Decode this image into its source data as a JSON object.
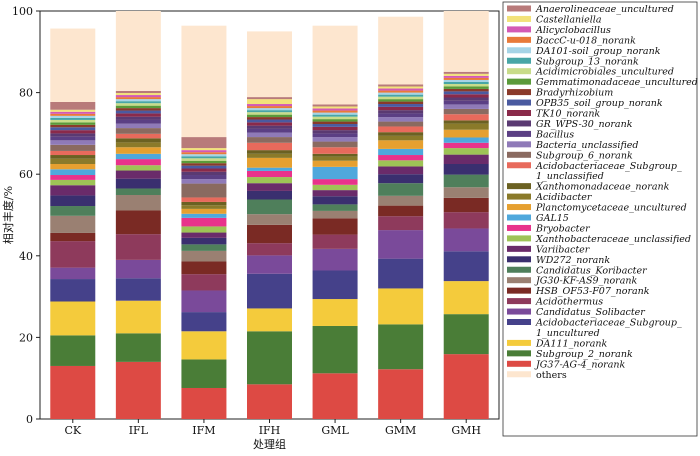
{
  "chart_data": {
    "type": "bar",
    "stacked": true,
    "categories": [
      "CK",
      "IFL",
      "IFM",
      "IFH",
      "GML",
      "GMM",
      "GMH"
    ],
    "xlabel": "处理组",
    "ylabel": "相对丰度/%",
    "ylim": [
      0,
      100
    ],
    "yticks": [
      0,
      20,
      40,
      60,
      80,
      100
    ],
    "legend_position": "right",
    "series": [
      {
        "name": "JG37-AG-4_norank",
        "color": "#dd4a44",
        "values": [
          13,
          14,
          7.6,
          8.5,
          11.2,
          12.2,
          15.9
        ]
      },
      {
        "name": "Subgroup_2_norank",
        "color": "#4a7d37",
        "values": [
          7.5,
          7,
          7,
          13,
          11.6,
          11,
          9.8
        ]
      },
      {
        "name": "DA111_norank",
        "color": "#f4cb3c",
        "values": [
          8.3,
          8,
          6.9,
          5.6,
          6.6,
          8.8,
          8.1
        ]
      },
      {
        "name": "Acidobacteriaceae_Subgroup_1_uncultured",
        "color": "#45418a",
        "values": [
          5.5,
          5.5,
          4.7,
          8.5,
          7,
          7.3,
          7.3
        ]
      },
      {
        "name": "Candidatus_Solibacter",
        "color": "#7a4a9a",
        "values": [
          2.8,
          4.5,
          5.3,
          4.5,
          5.3,
          7,
          5.6
        ]
      },
      {
        "name": "Acidothermus",
        "color": "#8e3a5c",
        "values": [
          6.5,
          6.3,
          4,
          3,
          3.5,
          3.4,
          4
        ]
      },
      {
        "name": "HSB_OF53-F07_norank",
        "color": "#7a2a24",
        "values": [
          2,
          5.8,
          3.1,
          4.5,
          4,
          2.6,
          3.5
        ]
      },
      {
        "name": "JG30-KF-AS9_norank",
        "color": "#9a8072",
        "values": [
          4.2,
          3.8,
          2.6,
          2.6,
          1.8,
          2.4,
          2.6
        ]
      },
      {
        "name": "Candidatus_Koribacter",
        "color": "#4f7f5b",
        "values": [
          2.4,
          1.6,
          1.6,
          3.6,
          1.6,
          3.1,
          3.1
        ]
      },
      {
        "name": "WD272_norank",
        "color": "#3a2f6f",
        "values": [
          2.6,
          2.4,
          1.6,
          2.1,
          2,
          2.2,
          2.6
        ]
      },
      {
        "name": "Variibacter",
        "color": "#6a2b6a",
        "values": [
          2.5,
          2,
          1.3,
          1.9,
          1.5,
          1.9,
          2.3
        ]
      },
      {
        "name": "Xanthobacteraceae_unclassified",
        "color": "#9ec356",
        "values": [
          1.3,
          1.3,
          1.5,
          1.5,
          1.3,
          1.5,
          1.6
        ]
      },
      {
        "name": "Bryobacter",
        "color": "#e8338b",
        "values": [
          1.2,
          1.5,
          2.1,
          1.5,
          1.4,
          1.3,
          1.3
        ]
      },
      {
        "name": "GAL15",
        "color": "#4fa8dc",
        "values": [
          1.4,
          1.3,
          1,
          0.8,
          3,
          1.5,
          1.3
        ]
      },
      {
        "name": "Planctomycetaceae_uncultured",
        "color": "#e6a030",
        "values": [
          1.3,
          1.6,
          1.2,
          2.4,
          1.5,
          2.1,
          1.9
        ]
      },
      {
        "name": "Acidibacter",
        "color": "#8a7a2a",
        "values": [
          1.3,
          1.2,
          0.9,
          1,
          1,
          1.1,
          1.5
        ]
      },
      {
        "name": "Xanthomonadaceae_norank",
        "color": "#6b6122",
        "values": [
          0.9,
          1,
          0.8,
          0.9,
          0.7,
          0.9,
          0.8
        ]
      },
      {
        "name": "Acidobacteriaceae_Subgroup_1_unclassified",
        "color": "#e86a5c",
        "values": [
          1,
          1.1,
          1.1,
          1.8,
          1.6,
          1.4,
          1.5
        ]
      },
      {
        "name": "Subgroup_6_norank",
        "color": "#8a6a60",
        "values": [
          1.5,
          1.4,
          3.4,
          1.4,
          1.4,
          1.2,
          1.3
        ]
      },
      {
        "name": "Bacteria_unclassified",
        "color": "#8f7ab8",
        "values": [
          1.1,
          1.1,
          1.1,
          1.1,
          1.1,
          1.1,
          1.1
        ]
      },
      {
        "name": "Bacillus",
        "color": "#5b3f84",
        "values": [
          0.9,
          0.9,
          1,
          0.9,
          0.9,
          0.9,
          0.9
        ]
      },
      {
        "name": "GR_WPS-30_norank",
        "color": "#5a3a72",
        "values": [
          0.8,
          0.8,
          0.8,
          0.8,
          0.8,
          0.8,
          0.8
        ]
      },
      {
        "name": "TK10_norank",
        "color": "#8a2a4a",
        "values": [
          0.8,
          0.8,
          0.8,
          0.8,
          0.8,
          0.8,
          0.8
        ]
      },
      {
        "name": "OPB35_soil_group_norank",
        "color": "#4a5aa0",
        "values": [
          0.7,
          0.7,
          0.7,
          0.7,
          0.7,
          0.7,
          0.7
        ]
      },
      {
        "name": "Bradyrhizobium",
        "color": "#8a3a2a",
        "values": [
          0.6,
          0.6,
          0.6,
          0.6,
          0.6,
          0.6,
          0.6
        ]
      },
      {
        "name": "Gemmatimonadaceae_uncultured",
        "color": "#5a9a3a",
        "values": [
          0.6,
          0.6,
          0.6,
          0.6,
          0.6,
          0.6,
          0.6
        ]
      },
      {
        "name": "Acidimicrobiales_uncultured",
        "color": "#c8dc8a",
        "values": [
          0.6,
          0.6,
          0.6,
          0.6,
          0.6,
          0.6,
          0.6
        ]
      },
      {
        "name": "Subgroup_13_norank",
        "color": "#48a6a6",
        "values": [
          0.5,
          0.5,
          0.5,
          0.5,
          0.5,
          0.5,
          0.5
        ]
      },
      {
        "name": "DA101-soil_group_norank",
        "color": "#a6d4e6",
        "values": [
          0.5,
          0.5,
          0.5,
          0.5,
          0.5,
          0.5,
          0.5
        ]
      },
      {
        "name": "BaccC-u-018_norank",
        "color": "#e87a3a",
        "values": [
          0.5,
          0.5,
          0.5,
          0.5,
          0.5,
          0.5,
          0.5
        ]
      },
      {
        "name": "Alicyclobacillus",
        "color": "#d35ab5",
        "values": [
          0.5,
          0.5,
          0.5,
          0.5,
          0.5,
          0.5,
          0.5
        ]
      },
      {
        "name": "Castellaniella",
        "color": "#f2e27a",
        "values": [
          0.5,
          0.5,
          0.5,
          1.2,
          0.5,
          0.5,
          0.5
        ]
      },
      {
        "name": "Anaerolineaceae_uncultured",
        "color": "#b87a7a",
        "values": [
          1.9,
          0.5,
          2.7,
          0.5,
          0.5,
          0.5,
          0.5
        ]
      },
      {
        "name": "others",
        "color": "#fde6cf",
        "values": [
          18,
          19.7,
          27.3,
          16.1,
          19.3,
          16.6,
          16.2
        ]
      }
    ]
  }
}
